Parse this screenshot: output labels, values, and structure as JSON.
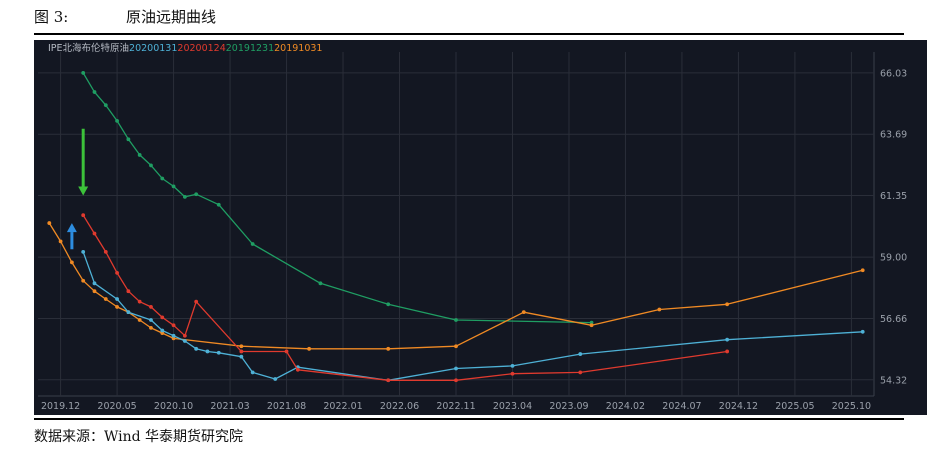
{
  "figure": {
    "label": "图 3:",
    "title": "原油远期曲线",
    "source": "数据来源：Wind  华泰期货研究院"
  },
  "chart_data": {
    "type": "line",
    "title": "IPE北海布伦特原油",
    "background": "#131722",
    "grid": true,
    "legend": "top-left",
    "x_ticks": [
      "2019.12",
      "2020.05",
      "2020.10",
      "2021.03",
      "2021.08",
      "2022.01",
      "2022.06",
      "2022.11",
      "2023.04",
      "2023.09",
      "2024.02",
      "2024.07",
      "2024.12",
      "2025.05",
      "2025.10"
    ],
    "y_ticks": [
      "66.03",
      "63.69",
      "61.35",
      "59.00",
      "56.66",
      "54.32"
    ],
    "x_range": [
      "2019-10",
      "2025-12"
    ],
    "y_range": [
      53.7,
      66.6
    ],
    "series": [
      {
        "name": "20191231",
        "color": "#1f9e63",
        "points": [
          [
            "2020-02",
            66.03
          ],
          [
            "2020-03",
            65.3
          ],
          [
            "2020-04",
            64.8
          ],
          [
            "2020-05",
            64.2
          ],
          [
            "2020-06",
            63.5
          ],
          [
            "2020-07",
            62.9
          ],
          [
            "2020-08",
            62.5
          ],
          [
            "2020-09",
            62.0
          ],
          [
            "2020-10",
            61.7
          ],
          [
            "2020-11",
            61.3
          ],
          [
            "2020-12",
            61.4
          ],
          [
            "2021-02",
            61.0
          ],
          [
            "2021-05",
            59.5
          ],
          [
            "2021-11",
            58.0
          ],
          [
            "2022-05",
            57.2
          ],
          [
            "2022-11",
            56.6
          ],
          [
            "2023-11",
            56.5
          ]
        ]
      },
      {
        "name": "20191031",
        "color": "#f08a24",
        "points": [
          [
            "2019-11",
            60.3
          ],
          [
            "2019-12",
            59.6
          ],
          [
            "2020-01",
            58.8
          ],
          [
            "2020-02",
            58.1
          ],
          [
            "2020-03",
            57.7
          ],
          [
            "2020-04",
            57.4
          ],
          [
            "2020-05",
            57.1
          ],
          [
            "2020-06",
            56.9
          ],
          [
            "2020-07",
            56.6
          ],
          [
            "2020-08",
            56.3
          ],
          [
            "2020-09",
            56.1
          ],
          [
            "2020-10",
            55.9
          ],
          [
            "2021-04",
            55.6
          ],
          [
            "2021-10",
            55.5
          ],
          [
            "2022-05",
            55.5
          ],
          [
            "2022-11",
            55.6
          ],
          [
            "2023-05",
            56.9
          ],
          [
            "2023-11",
            56.4
          ],
          [
            "2024-05",
            57.0
          ],
          [
            "2024-11",
            57.2
          ],
          [
            "2025-11",
            58.5
          ]
        ]
      },
      {
        "name": "20200131",
        "color": "#4eb1d6",
        "points": [
          [
            "2020-02",
            59.2
          ],
          [
            "2020-03",
            58.0
          ],
          [
            "2020-05",
            57.4
          ],
          [
            "2020-06",
            56.9
          ],
          [
            "2020-08",
            56.6
          ],
          [
            "2020-09",
            56.2
          ],
          [
            "2020-10",
            56.0
          ],
          [
            "2020-11",
            55.8
          ],
          [
            "2020-12",
            55.5
          ],
          [
            "2021-01",
            55.4
          ],
          [
            "2021-02",
            55.35
          ],
          [
            "2021-04",
            55.2
          ],
          [
            "2021-05",
            54.6
          ],
          [
            "2021-07",
            54.35
          ],
          [
            "2021-09",
            54.8
          ],
          [
            "2022-05",
            54.3
          ],
          [
            "2022-11",
            54.75
          ],
          [
            "2023-04",
            54.85
          ],
          [
            "2023-10",
            55.3
          ],
          [
            "2024-11",
            55.85
          ],
          [
            "2025-11",
            56.15
          ]
        ]
      },
      {
        "name": "20200124",
        "color": "#e03a2e",
        "points": [
          [
            "2020-02",
            60.6
          ],
          [
            "2020-03",
            59.9
          ],
          [
            "2020-04",
            59.2
          ],
          [
            "2020-05",
            58.4
          ],
          [
            "2020-06",
            57.7
          ],
          [
            "2020-07",
            57.3
          ],
          [
            "2020-08",
            57.1
          ],
          [
            "2020-09",
            56.7
          ],
          [
            "2020-10",
            56.4
          ],
          [
            "2020-11",
            56.0
          ],
          [
            "2020-12",
            57.3
          ],
          [
            "2021-04",
            55.4
          ],
          [
            "2021-08",
            55.4
          ],
          [
            "2021-09",
            54.7
          ],
          [
            "2022-05",
            54.3
          ],
          [
            "2022-11",
            54.3
          ],
          [
            "2023-04",
            54.55
          ],
          [
            "2023-10",
            54.6
          ],
          [
            "2024-11",
            55.4
          ]
        ]
      }
    ],
    "annotations": [
      {
        "name": "green-arrow",
        "color": "#3cc23a",
        "direction": "down",
        "at": [
          "2020-02",
          63.9
        ],
        "to": [
          "2020-02",
          61.35
        ]
      },
      {
        "name": "blue-arrow",
        "color": "#2d8de0",
        "direction": "up",
        "at": [
          "2020-01",
          59.3
        ],
        "to": [
          "2020-01",
          60.3
        ]
      }
    ]
  }
}
